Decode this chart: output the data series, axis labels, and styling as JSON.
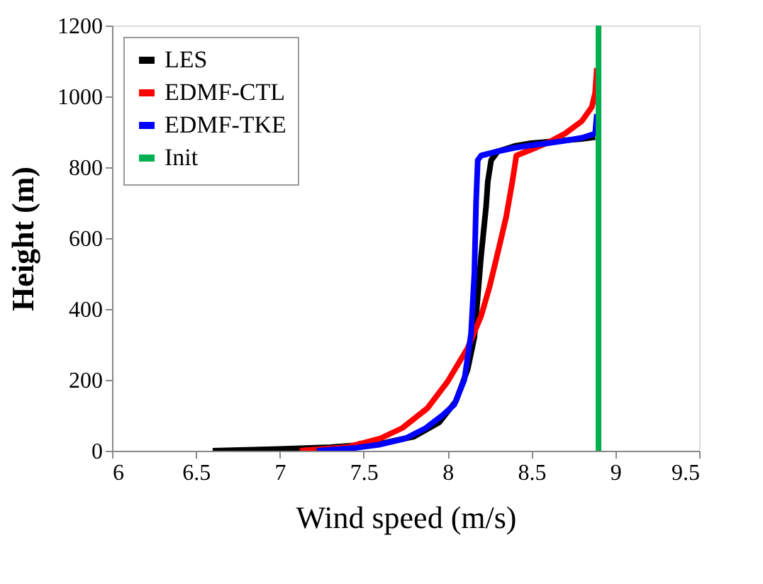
{
  "chart_data": {
    "type": "line",
    "xlabel": "Wind speed (m/s)",
    "ylabel": "Height (m)",
    "xlim": [
      6,
      9.5
    ],
    "xticks": [
      6,
      6.5,
      7,
      7.5,
      8,
      8.5,
      9,
      9.5
    ],
    "ylim": [
      0,
      1200
    ],
    "yticks": [
      0,
      200,
      400,
      600,
      800,
      1000,
      1200
    ],
    "grid": false,
    "legend": "top left",
    "marker": "none",
    "line_style": "solid",
    "series": [
      {
        "name": "LES",
        "color": "#000000",
        "x": [
          6.6,
          7.0,
          7.3,
          7.6,
          7.8,
          7.95,
          8.05,
          8.12,
          8.16,
          8.18,
          8.2,
          8.23,
          8.24,
          8.26,
          8.3,
          8.4,
          8.5,
          8.6,
          8.7,
          8.8,
          8.88
        ],
        "values": [
          0,
          5,
          10,
          20,
          40,
          80,
          140,
          230,
          320,
          435,
          550,
          690,
          760,
          820,
          845,
          860,
          868,
          872,
          876,
          880,
          885
        ]
      },
      {
        "name": "EDMF-CTL",
        "color": "#ff0000",
        "x": [
          7.12,
          7.4,
          7.6,
          7.73,
          7.88,
          8.0,
          8.12,
          8.2,
          8.25,
          8.3,
          8.35,
          8.39,
          8.41,
          8.5,
          8.6,
          8.7,
          8.8,
          8.86,
          8.88,
          8.89
        ],
        "values": [
          0,
          10,
          35,
          64,
          120,
          195,
          290,
          380,
          462,
          560,
          661,
          770,
          833,
          850,
          870,
          895,
          930,
          970,
          1010,
          1080
        ]
      },
      {
        "name": "EDMF-TKE",
        "color": "#0000ff",
        "x": [
          7.22,
          7.45,
          7.59,
          7.75,
          7.87,
          7.97,
          8.04,
          8.1,
          8.14,
          8.16,
          8.17,
          8.18,
          8.2,
          8.3,
          8.4,
          8.5,
          8.6,
          8.7,
          8.8,
          8.88,
          8.89
        ],
        "values": [
          0,
          8,
          17,
          35,
          64,
          100,
          130,
          200,
          330,
          500,
          700,
          820,
          833,
          845,
          855,
          862,
          868,
          875,
          883,
          895,
          950
        ]
      },
      {
        "name": "Init",
        "color": "#00b050",
        "x": [
          8.9,
          8.9
        ],
        "values": [
          0,
          1200
        ]
      }
    ]
  }
}
